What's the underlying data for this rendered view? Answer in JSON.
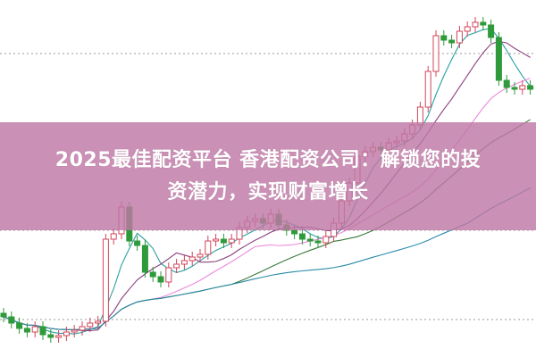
{
  "banner": {
    "line1": "2025最佳配资平台 香港配资公司：解锁您的投",
    "line2": "资潜力，实现财富增长"
  },
  "colors": {
    "up": "#d2455a",
    "down": "#2e9a3a",
    "banner": "#be78a5",
    "ma_colors": [
      "#2aa0a0",
      "#8a3f7e",
      "#ee88dd",
      "#3a7a3a",
      "#2a8aa8"
    ]
  },
  "chart_data": {
    "type": "candlestick",
    "title": "",
    "xlabel": "",
    "ylabel": "",
    "ylim": [
      0,
      100
    ],
    "grid": "dotted horizontal",
    "close": [
      11.25,
      9.5,
      8,
      7,
      8.5,
      6.25,
      5.5,
      6,
      7,
      7.5,
      8.5,
      9.5,
      10,
      33,
      34.5,
      42,
      32.5,
      31.25,
      23.75,
      22.5,
      21,
      25,
      26,
      27,
      28,
      28.75,
      32.5,
      33,
      32,
      33,
      36.25,
      38,
      38.75,
      37.5,
      40,
      37,
      35.5,
      34.5,
      33,
      32.5,
      32,
      33.75,
      37.5,
      43.75,
      48.75,
      56.25,
      57.5,
      58.75,
      58,
      60,
      60.5,
      62.5,
      65,
      70,
      80,
      90,
      88.75,
      88,
      91.25,
      92.5,
      93.75,
      93,
      89.5,
      77.5,
      75.5,
      75,
      76,
      75
    ],
    "moving_averages": [
      5,
      10,
      20,
      30,
      60
    ],
    "gridlines": [
      85,
      35.5,
      10.5
    ]
  }
}
